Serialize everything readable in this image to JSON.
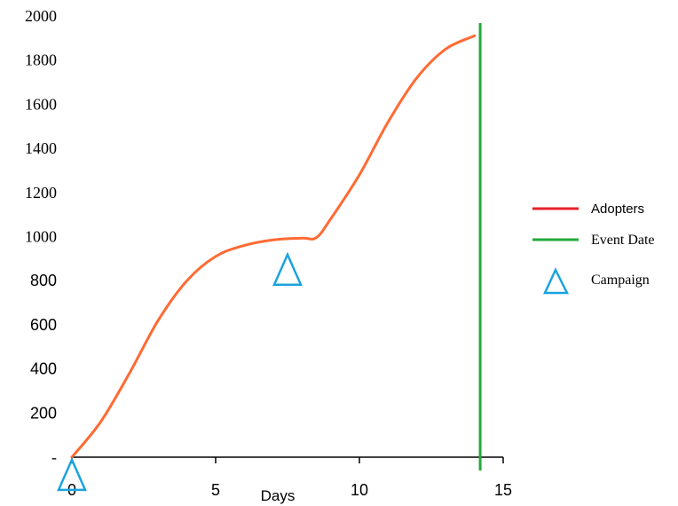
{
  "chart_data": {
    "type": "line",
    "title": "",
    "xlabel": "Days",
    "ylabel": "",
    "xlim": [
      0,
      15
    ],
    "ylim": [
      0,
      2000
    ],
    "x_ticks": [
      {
        "value": 0,
        "label": "0"
      },
      {
        "value": 5,
        "label": "5"
      },
      {
        "value": 10,
        "label": "10"
      },
      {
        "value": 15,
        "label": "15"
      }
    ],
    "y_ticks": [
      {
        "value": 0,
        "label": "-"
      },
      {
        "value": 200,
        "label": "200"
      },
      {
        "value": 400,
        "label": "400"
      },
      {
        "value": 600,
        "label": "600"
      },
      {
        "value": 800,
        "label": "800"
      },
      {
        "value": 1000,
        "label": "1000"
      },
      {
        "value": 1200,
        "label": "1200"
      },
      {
        "value": 1400,
        "label": "1400"
      },
      {
        "value": 1600,
        "label": "1600"
      },
      {
        "value": 1800,
        "label": "1800"
      },
      {
        "value": 2000,
        "label": "2000"
      }
    ],
    "grid": false,
    "legend_position": "right",
    "series": [
      {
        "name": "Adopters",
        "color": "#ff6a33",
        "x": [
          0,
          1,
          2,
          3,
          4,
          5,
          6,
          7,
          8,
          8.5,
          9,
          10,
          11,
          12,
          13,
          14
        ],
        "y": [
          0,
          160,
          380,
          620,
          800,
          910,
          960,
          985,
          993,
          995,
          1080,
          1280,
          1520,
          1720,
          1850,
          1910
        ]
      }
    ],
    "event_date": {
      "name": "Event Date",
      "x": 14.2,
      "color": "#22aa3a"
    },
    "campaigns": {
      "name": "Campaign",
      "color": "#1aa3e0",
      "points": [
        {
          "x": 0,
          "y": -80
        },
        {
          "x": 7.5,
          "y": 850
        }
      ]
    },
    "legend": [
      {
        "label": "Adopters",
        "kind": "line",
        "color": "#e8202a"
      },
      {
        "label": "Event Date",
        "kind": "line",
        "color": "#22aa3a"
      },
      {
        "label": "Campaign",
        "kind": "triangle",
        "color": "#1aa3e0"
      }
    ]
  }
}
